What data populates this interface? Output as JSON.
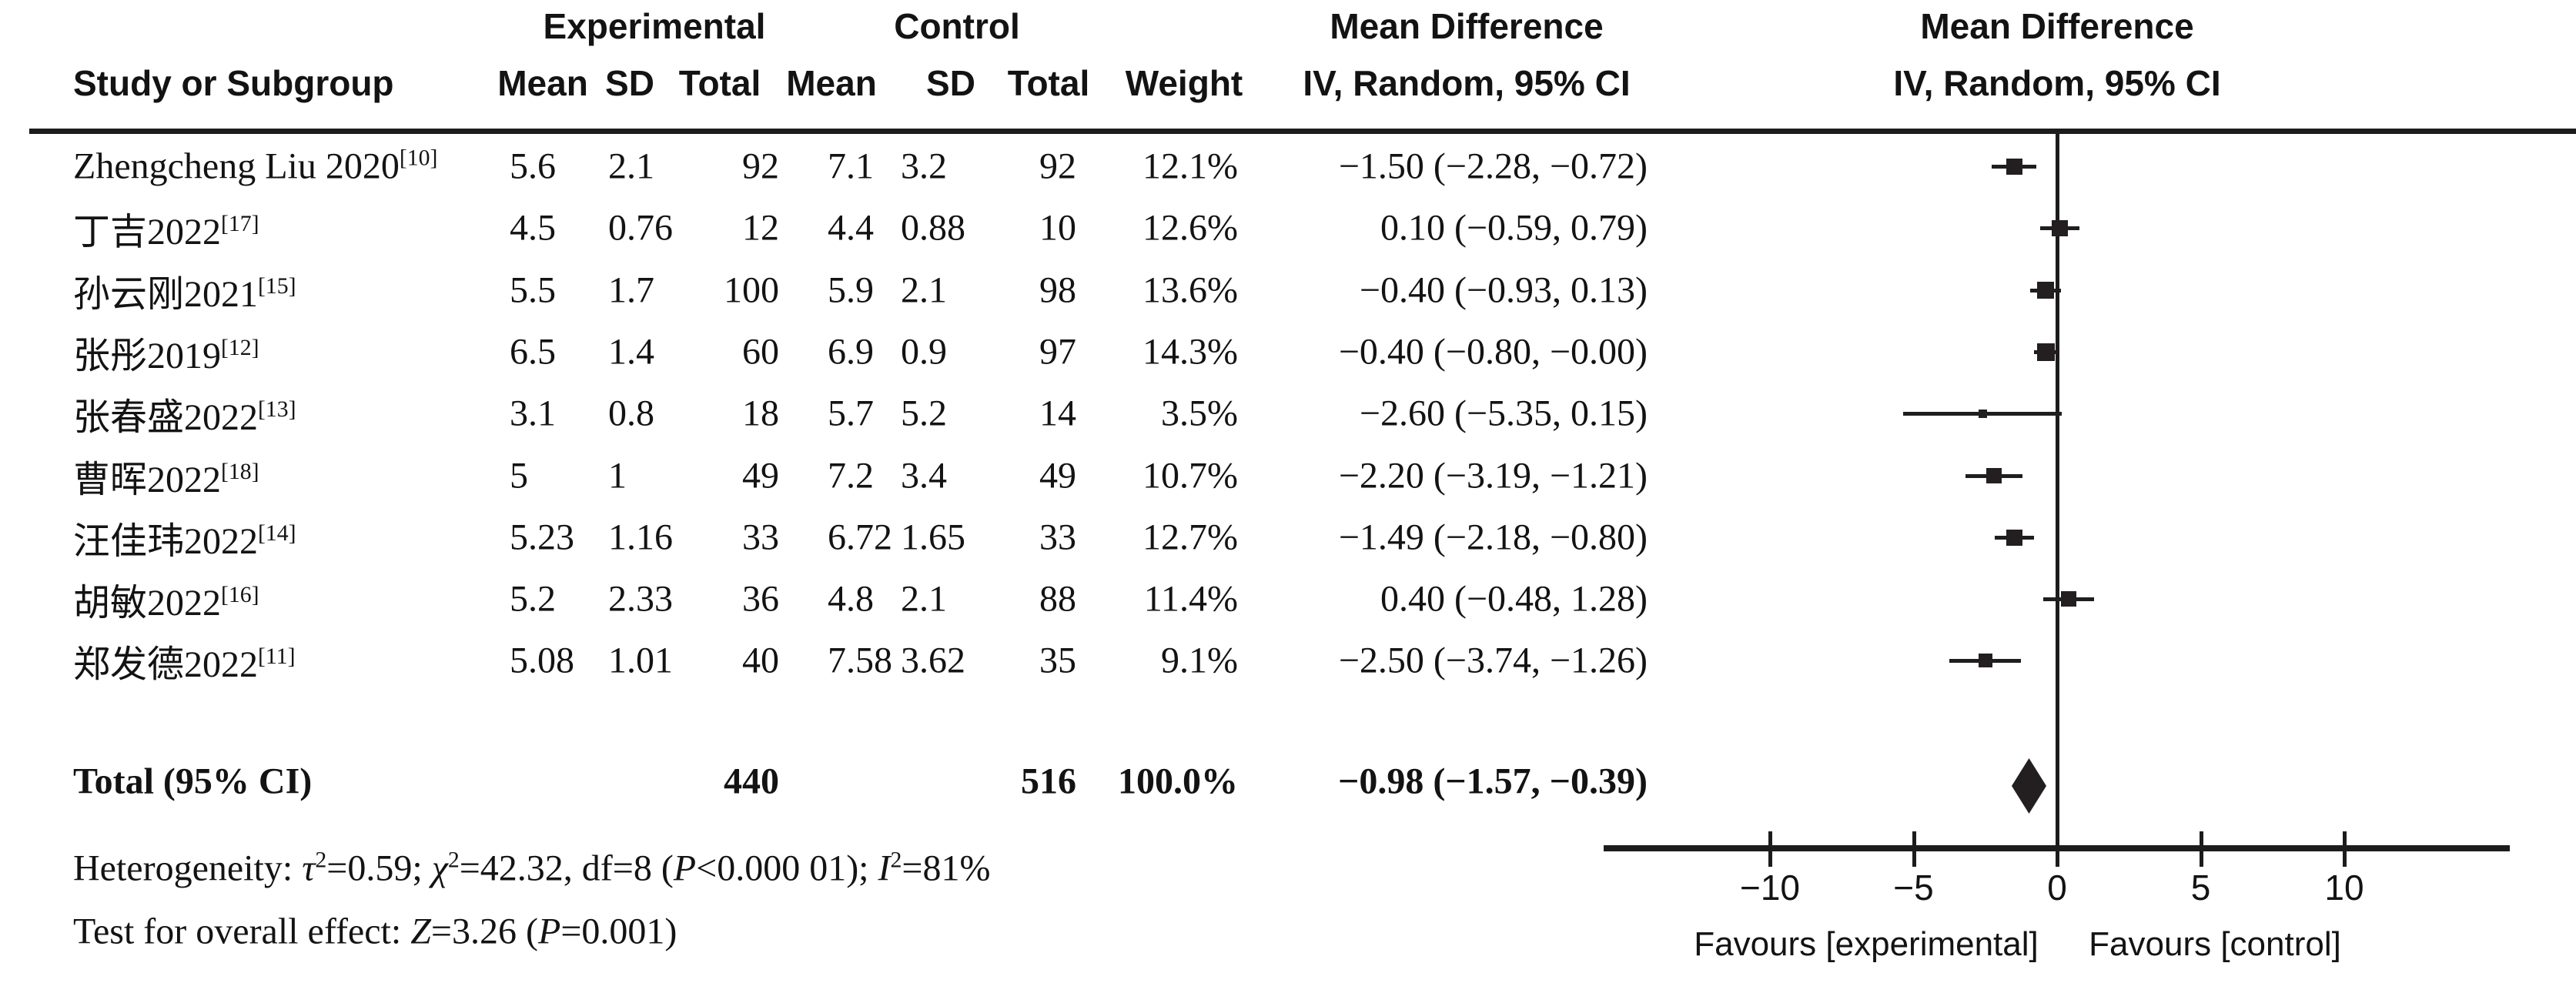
{
  "headers": {
    "group_experimental": "Experimental",
    "group_control": "Control",
    "md_left_line1": "Mean Difference",
    "md_left_line2": "IV, Random, 95% CI",
    "md_right_line1": "Mean Difference",
    "md_right_line2": "IV, Random, 95% CI",
    "study": "Study or Subgroup",
    "mean_exp": "Mean",
    "sd_exp": "SD",
    "total_exp": "Total",
    "mean_ctrl": "Mean",
    "sd_ctrl": "SD",
    "total_ctrl": "Total",
    "weight": "Weight"
  },
  "chart_data": {
    "type": "scatter",
    "subtype": "forest-plot",
    "title": "Mean Difference, IV, Random, 95% CI",
    "grid": false,
    "x_axis": {
      "range": [
        -15.8,
        15.8
      ],
      "ticks": [
        {
          "v": -10,
          "label": "−10"
        },
        {
          "v": -5,
          "label": "−5"
        },
        {
          "v": 0,
          "label": "0"
        },
        {
          "v": 5,
          "label": "5"
        },
        {
          "v": 10,
          "label": "10"
        }
      ],
      "label_left": "Favours [experimental]",
      "label_right": "Favours [control]"
    },
    "rows": [
      {
        "study": "Zhengcheng Liu 2020",
        "ref": "[10]",
        "exp_mean": "5.6",
        "exp_sd": "2.1",
        "exp_total": "92",
        "ctrl_mean": "7.1",
        "ctrl_sd": "3.2",
        "ctrl_total": "92",
        "weight": "12.1%",
        "weight_num": 12.1,
        "md_text": "−1.50 (−2.28, −0.72)",
        "md": -1.5,
        "lo": -2.28,
        "hi": -0.72
      },
      {
        "study": "丁吉2022",
        "ref": "[17]",
        "exp_mean": "4.5",
        "exp_sd": "0.76",
        "exp_total": "12",
        "ctrl_mean": "4.4",
        "ctrl_sd": "0.88",
        "ctrl_total": "10",
        "weight": "12.6%",
        "weight_num": 12.6,
        "md_text": "0.10 (−0.59, 0.79)",
        "md": 0.1,
        "lo": -0.59,
        "hi": 0.79
      },
      {
        "study": "孙云刚2021",
        "ref": "[15]",
        "exp_mean": "5.5",
        "exp_sd": "1.7",
        "exp_total": "100",
        "ctrl_mean": "5.9",
        "ctrl_sd": "2.1",
        "ctrl_total": "98",
        "weight": "13.6%",
        "weight_num": 13.6,
        "md_text": "−0.40 (−0.93, 0.13)",
        "md": -0.4,
        "lo": -0.93,
        "hi": 0.13
      },
      {
        "study": "张彤2019",
        "ref": "[12]",
        "exp_mean": "6.5",
        "exp_sd": "1.4",
        "exp_total": "60",
        "ctrl_mean": "6.9",
        "ctrl_sd": "0.9",
        "ctrl_total": "97",
        "weight": "14.3%",
        "weight_num": 14.3,
        "md_text": "−0.40 (−0.80, −0.00)",
        "md": -0.4,
        "lo": -0.8,
        "hi": -0.0
      },
      {
        "study": "张春盛2022",
        "ref": "[13]",
        "exp_mean": "3.1",
        "exp_sd": "0.8",
        "exp_total": "18",
        "ctrl_mean": "5.7",
        "ctrl_sd": "5.2",
        "ctrl_total": "14",
        "weight": "3.5%",
        "weight_num": 3.5,
        "md_text": "−2.60 (−5.35, 0.15)",
        "md": -2.6,
        "lo": -5.35,
        "hi": 0.15
      },
      {
        "study": "曹晖2022",
        "ref": "[18]",
        "exp_mean": "5",
        "exp_sd": "1",
        "exp_total": "49",
        "ctrl_mean": "7.2",
        "ctrl_sd": "3.4",
        "ctrl_total": "49",
        "weight": "10.7%",
        "weight_num": 10.7,
        "md_text": "−2.20 (−3.19, −1.21)",
        "md": -2.2,
        "lo": -3.19,
        "hi": -1.21
      },
      {
        "study": "汪佳玮2022",
        "ref": "[14]",
        "exp_mean": "5.23",
        "exp_sd": "1.16",
        "exp_total": "33",
        "ctrl_mean": "6.72",
        "ctrl_sd": "1.65",
        "ctrl_total": "33",
        "weight": "12.7%",
        "weight_num": 12.7,
        "md_text": "−1.49 (−2.18, −0.80)",
        "md": -1.49,
        "lo": -2.18,
        "hi": -0.8
      },
      {
        "study": "胡敏2022",
        "ref": "[16]",
        "exp_mean": "5.2",
        "exp_sd": "2.33",
        "exp_total": "36",
        "ctrl_mean": "4.8",
        "ctrl_sd": "2.1",
        "ctrl_total": "88",
        "weight": "11.4%",
        "weight_num": 11.4,
        "md_text": "0.40 (−0.48, 1.28)",
        "md": 0.4,
        "lo": -0.48,
        "hi": 1.28
      },
      {
        "study": "郑发德2022",
        "ref": "[11]",
        "exp_mean": "5.08",
        "exp_sd": "1.01",
        "exp_total": "40",
        "ctrl_mean": "7.58",
        "ctrl_sd": "3.62",
        "ctrl_total": "35",
        "weight": "9.1%",
        "weight_num": 9.1,
        "md_text": "−2.50 (−3.74, −1.26)",
        "md": -2.5,
        "lo": -3.74,
        "hi": -1.26
      }
    ],
    "total": {
      "label": "Total (95% CI)",
      "exp_total": "440",
      "ctrl_total": "516",
      "weight": "100.0%",
      "md_text": "−0.98 (−1.57, −0.39)",
      "md": -0.98,
      "lo": -1.57,
      "hi": -0.39
    },
    "heterogeneity": "Heterogeneity: τ²=0.59; χ²=42.32, df=8 (P<0.000 01); I²=81%",
    "overall_effect": "Test for overall effect: Z=3.26 (P=0.001)"
  },
  "footnotes": {
    "heterogeneity_segments": [
      {
        "t": "Heterogeneity: "
      },
      {
        "t": "τ",
        "i": true
      },
      {
        "t": "2",
        "sup": true
      },
      {
        "t": "=0.59; "
      },
      {
        "t": "χ",
        "i": true
      },
      {
        "t": "2",
        "sup": true
      },
      {
        "t": "=42.32, df=8 ("
      },
      {
        "t": "P",
        "i": true
      },
      {
        "t": "<0.000 01); "
      },
      {
        "t": "I",
        "i": true
      },
      {
        "t": "2",
        "sup": true
      },
      {
        "t": "=81%"
      }
    ],
    "overall_effect_segments": [
      {
        "t": "Test for overall effect: "
      },
      {
        "t": "Z",
        "i": true
      },
      {
        "t": "=3.26 ("
      },
      {
        "t": "P",
        "i": true
      },
      {
        "t": "=0.001)"
      }
    ]
  }
}
